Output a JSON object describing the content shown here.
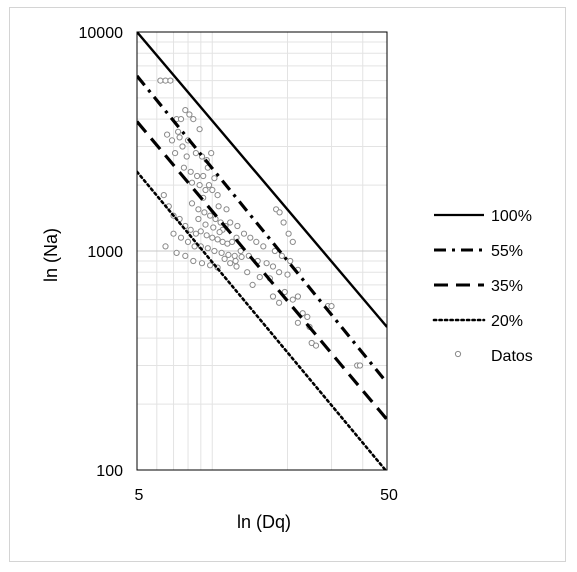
{
  "chart_data": {
    "type": "scatter",
    "title": "",
    "xlabel": "ln (Dq)",
    "ylabel": "ln (Na)",
    "xscale": "log",
    "yscale": "log",
    "xlim": [
      5,
      50
    ],
    "ylim": [
      100,
      10000
    ],
    "x_ticks": [
      "5",
      "50"
    ],
    "y_ticks": [
      "100",
      "1000",
      "10000"
    ],
    "grid": true,
    "legend_position": "right",
    "lines": [
      {
        "name": "100%",
        "style": "solid",
        "x": [
          5,
          50
        ],
        "y": [
          10000,
          450
        ]
      },
      {
        "name": "55%",
        "style": "dash-dot",
        "x": [
          5,
          50
        ],
        "y": [
          6300,
          250
        ]
      },
      {
        "name": "35%",
        "style": "dashed",
        "x": [
          5,
          50
        ],
        "y": [
          3900,
          170
        ]
      },
      {
        "name": "20%",
        "style": "dotted",
        "x": [
          5,
          50
        ],
        "y": [
          2300,
          98
        ]
      }
    ],
    "scatter_series": {
      "name": "Datos",
      "points": [
        [
          6.2,
          6000
        ],
        [
          6.5,
          6000
        ],
        [
          6.8,
          6000
        ],
        [
          7.2,
          4000
        ],
        [
          7.5,
          4000
        ],
        [
          7.8,
          4400
        ],
        [
          8.1,
          4200
        ],
        [
          8.4,
          4000
        ],
        [
          6.6,
          3400
        ],
        [
          6.9,
          3200
        ],
        [
          7.3,
          3500
        ],
        [
          7.6,
          3000
        ],
        [
          8.0,
          3200
        ],
        [
          7.1,
          2800
        ],
        [
          7.9,
          2700
        ],
        [
          8.6,
          2800
        ],
        [
          9.1,
          2700
        ],
        [
          9.5,
          2600
        ],
        [
          9.9,
          2800
        ],
        [
          7.7,
          2400
        ],
        [
          8.2,
          2300
        ],
        [
          8.7,
          2200
        ],
        [
          9.2,
          2200
        ],
        [
          9.7,
          2000
        ],
        [
          8.9,
          2000
        ],
        [
          9.4,
          1900
        ],
        [
          10.0,
          1900
        ],
        [
          10.5,
          1800
        ],
        [
          6.4,
          1800
        ],
        [
          6.7,
          1600
        ],
        [
          7.0,
          1450
        ],
        [
          7.4,
          1400
        ],
        [
          8.3,
          1650
        ],
        [
          8.8,
          1550
        ],
        [
          9.3,
          1500
        ],
        [
          9.8,
          1450
        ],
        [
          10.3,
          1400
        ],
        [
          10.8,
          1350
        ],
        [
          11.3,
          1300
        ],
        [
          7.8,
          1300
        ],
        [
          8.2,
          1250
        ],
        [
          8.6,
          1200
        ],
        [
          9.0,
          1230
        ],
        [
          9.5,
          1180
        ],
        [
          10.0,
          1150
        ],
        [
          10.5,
          1130
        ],
        [
          11.0,
          1100
        ],
        [
          11.5,
          1080
        ],
        [
          12.0,
          1100
        ],
        [
          12.5,
          1150
        ],
        [
          8.0,
          1100
        ],
        [
          8.5,
          1050
        ],
        [
          9.0,
          1050
        ],
        [
          9.6,
          1030
        ],
        [
          10.2,
          1000
        ],
        [
          10.9,
          980
        ],
        [
          11.6,
          960
        ],
        [
          12.3,
          950
        ],
        [
          6.5,
          1050
        ],
        [
          7.2,
          980
        ],
        [
          7.8,
          950
        ],
        [
          8.4,
          900
        ],
        [
          9.1,
          880
        ],
        [
          9.8,
          860
        ],
        [
          10.5,
          840
        ],
        [
          11.0,
          1250
        ],
        [
          11.8,
          1350
        ],
        [
          12.6,
          1300
        ],
        [
          13.4,
          1200
        ],
        [
          14.2,
          1150
        ],
        [
          15.0,
          1100
        ],
        [
          13.0,
          1000
        ],
        [
          14.0,
          950
        ],
        [
          15.2,
          900
        ],
        [
          16.5,
          880
        ],
        [
          17.5,
          850
        ],
        [
          12.5,
          850
        ],
        [
          13.8,
          800
        ],
        [
          15.5,
          760
        ],
        [
          17.0,
          750
        ],
        [
          18.5,
          800
        ],
        [
          20.0,
          780
        ],
        [
          16.0,
          1050
        ],
        [
          17.8,
          1000
        ],
        [
          19.0,
          950
        ],
        [
          20.5,
          900
        ],
        [
          22.0,
          820
        ],
        [
          18.0,
          1550
        ],
        [
          18.6,
          1500
        ],
        [
          19.3,
          1350
        ],
        [
          20.2,
          1200
        ],
        [
          21.0,
          1100
        ],
        [
          14.5,
          700
        ],
        [
          17.5,
          620
        ],
        [
          18.5,
          580
        ],
        [
          19.5,
          650
        ],
        [
          21.0,
          600
        ],
        [
          22.0,
          620
        ],
        [
          23.0,
          520
        ],
        [
          24.0,
          500
        ],
        [
          22.0,
          470
        ],
        [
          24.5,
          450
        ],
        [
          29.0,
          560
        ],
        [
          30.0,
          560
        ],
        [
          25.0,
          380
        ],
        [
          26.0,
          370
        ],
        [
          38.0,
          300
        ],
        [
          39.0,
          300
        ],
        [
          7.0,
          1200
        ],
        [
          7.5,
          1150
        ],
        [
          8.8,
          1400
        ],
        [
          9.4,
          1320
        ],
        [
          10.1,
          1280
        ],
        [
          10.7,
          1220
        ],
        [
          11.2,
          920
        ],
        [
          11.8,
          880
        ],
        [
          12.4,
          900
        ],
        [
          13.1,
          940
        ],
        [
          8.3,
          2050
        ],
        [
          9.2,
          1750
        ],
        [
          10.6,
          1600
        ],
        [
          11.4,
          1550
        ],
        [
          7.4,
          3300
        ],
        [
          8.9,
          3600
        ],
        [
          9.6,
          2400
        ],
        [
          10.2,
          2150
        ]
      ]
    }
  }
}
